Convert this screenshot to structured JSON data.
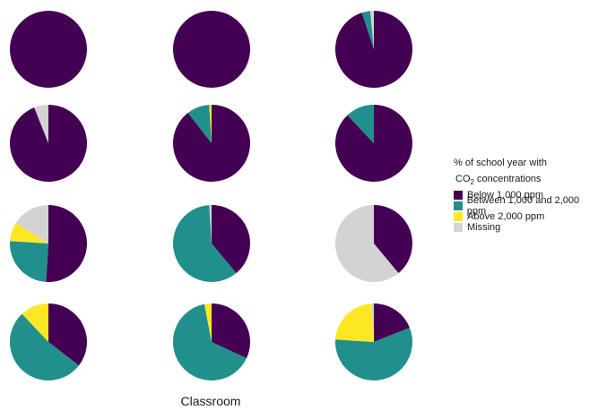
{
  "chart_data": {
    "type": "pie",
    "xlabel": "Classroom",
    "legend": {
      "title_line1": "% of school year with",
      "title_line2_prefix": "CO",
      "title_line2_sub": "2",
      "title_line2_suffix": " concentrations",
      "placement": "right",
      "entries": [
        {
          "label": "Below 1,000 ppm",
          "color": "#440154"
        },
        {
          "label": "Between 1,000 and 2,000 ppm",
          "color": "#21908C"
        },
        {
          "label": "Above 2,000 ppm",
          "color": "#FDE725"
        },
        {
          "label": "Missing",
          "color": "#D3D3D3"
        }
      ]
    },
    "categories": [
      "Below 1,000 ppm",
      "Between 1,000 and 2,000 ppm",
      "Above 2,000 ppm",
      "Missing"
    ],
    "pies": [
      {
        "values": [
          100,
          0,
          0,
          0
        ]
      },
      {
        "values": [
          100,
          0,
          0,
          0
        ]
      },
      {
        "values": [
          95,
          3.5,
          0,
          1.5
        ]
      },
      {
        "values": [
          94,
          0,
          0,
          6
        ]
      },
      {
        "values": [
          89.5,
          9.5,
          1,
          0
        ]
      },
      {
        "values": [
          88,
          12,
          0,
          0
        ]
      },
      {
        "values": [
          51,
          25,
          8,
          16
        ]
      },
      {
        "values": [
          39,
          60,
          0,
          1
        ]
      },
      {
        "values": [
          39,
          0,
          0,
          61
        ]
      },
      {
        "values": [
          35.5,
          52.5,
          12,
          0
        ]
      },
      {
        "values": [
          32,
          65,
          3,
          0
        ]
      },
      {
        "values": [
          19,
          57,
          23,
          1
        ]
      }
    ]
  }
}
